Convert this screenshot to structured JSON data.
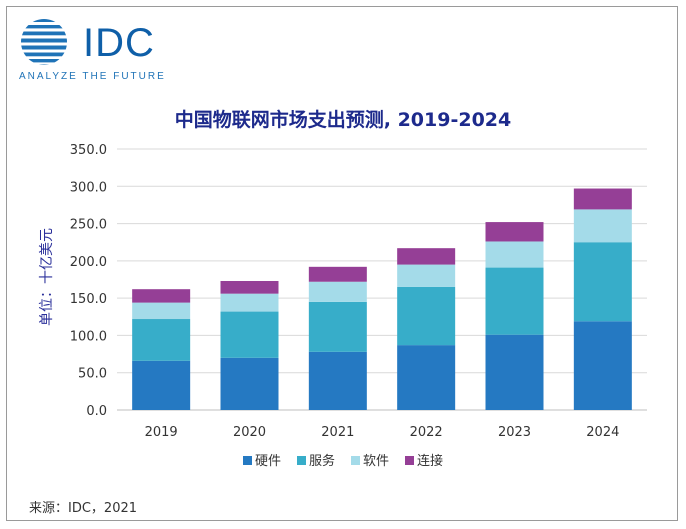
{
  "logo": {
    "word": "IDC",
    "tagline": "ANALYZE THE FUTURE",
    "icon": "idc-globe-icon",
    "color": "#0f5fa8"
  },
  "source": "来源：IDC，2021",
  "chart_data": {
    "type": "bar",
    "stacked": true,
    "title": "中国物联网市场支出预测, 2019-2024",
    "ylabel": "单位：十亿美元",
    "xlabel": "",
    "categories": [
      "2019",
      "2020",
      "2021",
      "2022",
      "2023",
      "2024"
    ],
    "ylim": [
      0,
      350
    ],
    "yticks": [
      "0.0",
      "50.0",
      "100.0",
      "150.0",
      "200.0",
      "250.0",
      "300.0",
      "350.0"
    ],
    "grid": true,
    "legend": "bottom",
    "series": [
      {
        "name": "硬件",
        "color": "#2579c2",
        "values": [
          66,
          70,
          78,
          87,
          101,
          119
        ]
      },
      {
        "name": "服务",
        "color": "#37adc9",
        "values": [
          56,
          62,
          67,
          78,
          90,
          106
        ]
      },
      {
        "name": "软件",
        "color": "#a4dbe9",
        "values": [
          22,
          24,
          27,
          30,
          35,
          44
        ]
      },
      {
        "name": "连接",
        "color": "#953f96",
        "values": [
          18,
          17,
          20,
          22,
          26,
          28
        ]
      }
    ]
  }
}
